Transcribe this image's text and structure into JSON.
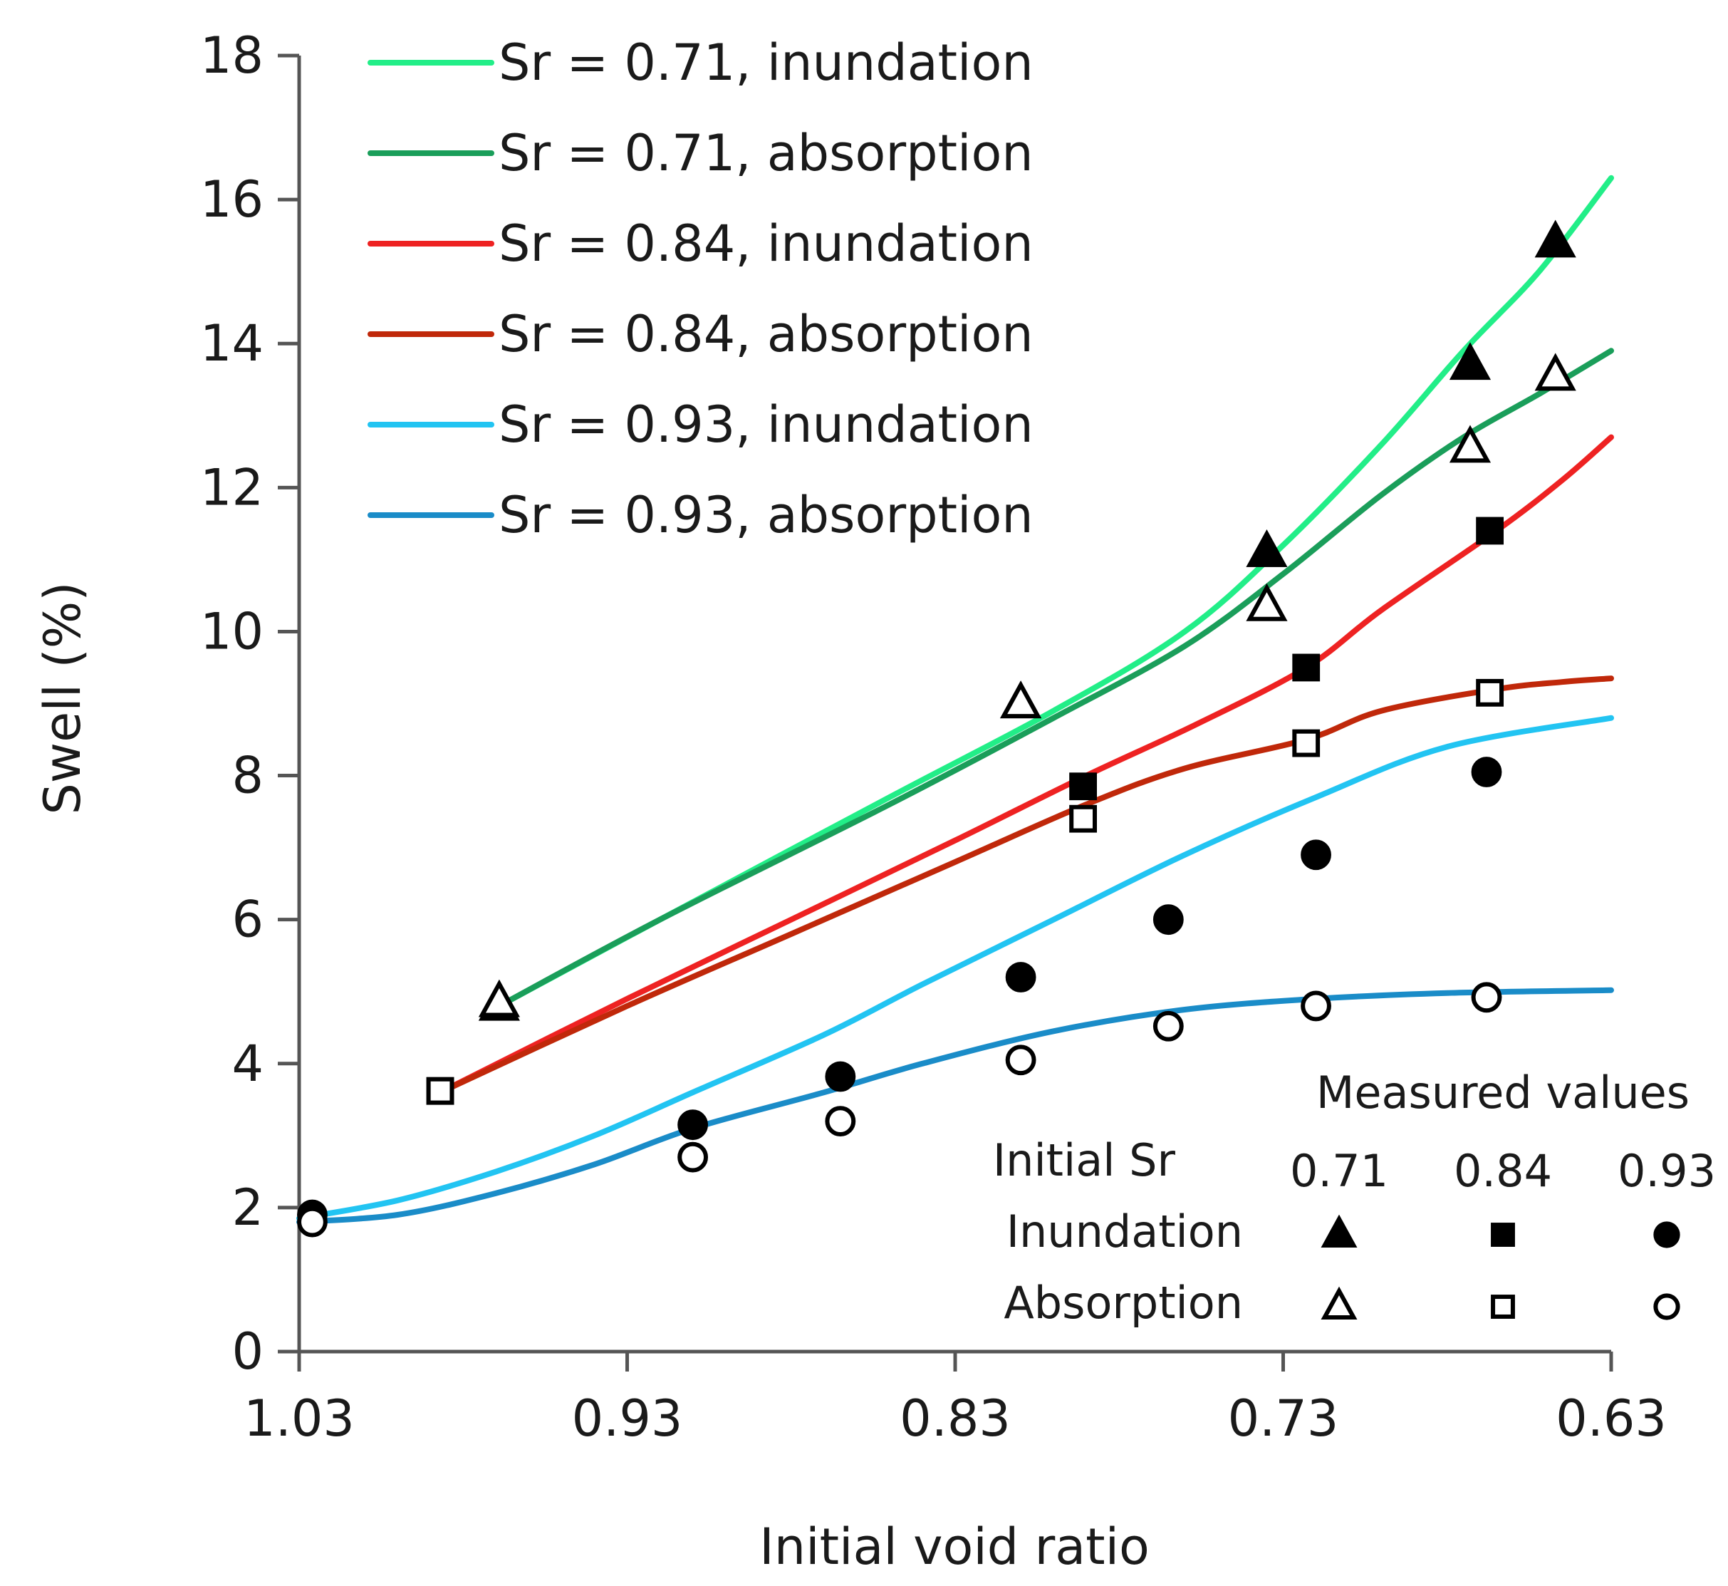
{
  "chart_data": {
    "type": "line",
    "xlabel": "Initial void ratio",
    "ylabel": "Swell  (%)",
    "xlim": [
      1.03,
      0.63
    ],
    "ylim": [
      0,
      18
    ],
    "x_ticks": [
      "1.03",
      "0.93",
      "0.83",
      "0.73",
      "0.63"
    ],
    "x_tick_values": [
      1.03,
      0.93,
      0.83,
      0.73,
      0.63
    ],
    "y_ticks": [
      "0",
      "2",
      "4",
      "6",
      "8",
      "10",
      "12",
      "14",
      "16",
      "18"
    ],
    "y_tick_values": [
      0,
      2,
      4,
      6,
      8,
      10,
      12,
      14,
      16,
      18
    ],
    "legend_position": "top-left",
    "series": [
      {
        "name": "Sr = 0.71, inundation",
        "color": "#22EE88",
        "x": [
          0.969,
          0.92,
          0.85,
          0.8,
          0.76,
          0.73,
          0.7,
          0.675,
          0.652,
          0.63
        ],
        "y": [
          4.8,
          6.0,
          7.7,
          8.9,
          10.0,
          11.2,
          12.6,
          13.9,
          15.0,
          16.3
        ]
      },
      {
        "name": "Sr = 0.71, absorption",
        "color": "#1A9E5A",
        "x": [
          0.969,
          0.92,
          0.85,
          0.8,
          0.76,
          0.73,
          0.7,
          0.675,
          0.652,
          0.63
        ],
        "y": [
          4.8,
          6.0,
          7.6,
          8.8,
          9.8,
          10.8,
          11.9,
          12.7,
          13.3,
          13.9
        ]
      },
      {
        "name": "Sr = 0.84, inundation",
        "color": "#EE2222",
        "x": [
          0.987,
          0.93,
          0.88,
          0.83,
          0.79,
          0.757,
          0.723,
          0.7,
          0.665,
          0.645,
          0.63
        ],
        "y": [
          3.6,
          4.9,
          6.0,
          7.1,
          8.0,
          8.7,
          9.5,
          10.3,
          11.4,
          12.1,
          12.7
        ]
      },
      {
        "name": "Sr = 0.84, absorption",
        "color": "#C0280A",
        "x": [
          0.987,
          0.93,
          0.88,
          0.83,
          0.79,
          0.76,
          0.723,
          0.7,
          0.665,
          0.645,
          0.63
        ],
        "y": [
          3.6,
          4.8,
          5.8,
          6.8,
          7.6,
          8.1,
          8.5,
          8.9,
          9.2,
          9.3,
          9.35
        ]
      },
      {
        "name": "Sr = 0.93, inundation",
        "color": "#22C4F2",
        "x": [
          1.03,
          1.0,
          0.97,
          0.94,
          0.91,
          0.87,
          0.84,
          0.8,
          0.76,
          0.72,
          0.68,
          0.63
        ],
        "y": [
          1.85,
          2.1,
          2.5,
          3.0,
          3.6,
          4.4,
          5.1,
          6.0,
          6.9,
          7.7,
          8.4,
          8.8
        ]
      },
      {
        "name": "Sr = 0.93, absorption",
        "color": "#1A8CC8",
        "x": [
          1.03,
          1.0,
          0.97,
          0.94,
          0.91,
          0.87,
          0.84,
          0.8,
          0.76,
          0.72,
          0.68,
          0.63
        ],
        "y": [
          1.8,
          1.9,
          2.2,
          2.6,
          3.1,
          3.6,
          4.0,
          4.45,
          4.75,
          4.9,
          4.98,
          5.02
        ]
      }
    ],
    "measured_points": [
      {
        "group": "Sr = 0.71, inundation",
        "marker": "triangle",
        "filled": true,
        "x": [
          0.969,
          0.81,
          0.735,
          0.673,
          0.647
        ],
        "y": [
          4.8,
          9.0,
          11.1,
          13.7,
          15.4
        ]
      },
      {
        "group": "Sr = 0.71, absorption",
        "marker": "triangle",
        "filled": false,
        "x": [
          0.969,
          0.81,
          0.735,
          0.673,
          0.647
        ],
        "y": [
          4.85,
          9.0,
          10.35,
          12.55,
          13.55
        ]
      },
      {
        "group": "Sr = 0.84, inundation",
        "marker": "square",
        "filled": true,
        "x": [
          0.987,
          0.791,
          0.723,
          0.667
        ],
        "y": [
          3.62,
          7.85,
          9.5,
          11.4
        ]
      },
      {
        "group": "Sr = 0.84, absorption",
        "marker": "square",
        "filled": false,
        "x": [
          0.987,
          0.791,
          0.723,
          0.667
        ],
        "y": [
          3.62,
          7.4,
          8.45,
          9.15
        ]
      },
      {
        "group": "Sr = 0.93, inundation",
        "marker": "circle",
        "filled": true,
        "x": [
          1.026,
          0.91,
          0.865,
          0.81,
          0.765,
          0.72,
          0.668
        ],
        "y": [
          1.9,
          3.15,
          3.82,
          5.2,
          6.0,
          6.9,
          8.05
        ]
      },
      {
        "group": "Sr = 0.93, absorption",
        "marker": "circle",
        "filled": false,
        "x": [
          1.026,
          0.91,
          0.865,
          0.81,
          0.765,
          0.72,
          0.668
        ],
        "y": [
          1.8,
          2.7,
          3.2,
          4.05,
          4.52,
          4.8,
          4.92
        ]
      }
    ],
    "measured_legend": {
      "title": "Measured values",
      "header_label": "Initial Sr",
      "columns": [
        "0.71",
        "0.84",
        "0.93"
      ],
      "row_labels": [
        "Inundation",
        "Absorption"
      ]
    }
  }
}
